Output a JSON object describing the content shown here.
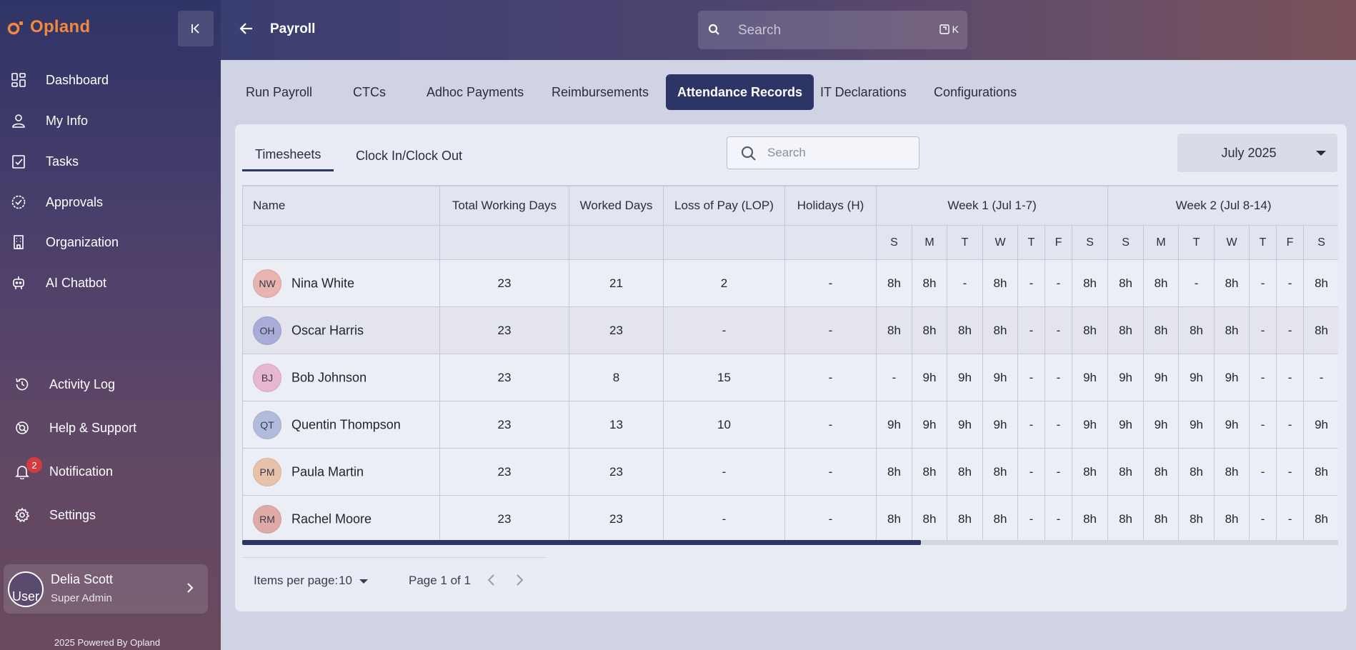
{
  "app": {
    "brand": "Opland",
    "powered_by": "2025 Powered By Opland"
  },
  "sidebar": {
    "items": [
      {
        "label": "Dashboard",
        "icon": "dashboard-icon"
      },
      {
        "label": "My Info",
        "icon": "user-icon"
      },
      {
        "label": "Tasks",
        "icon": "tasks-icon"
      },
      {
        "label": "Approvals",
        "icon": "approvals-icon"
      },
      {
        "label": "Organization",
        "icon": "building-icon"
      },
      {
        "label": "AI Chatbot",
        "icon": "robot-icon"
      }
    ],
    "bottom_items": [
      {
        "label": "Activity Log",
        "icon": "history-icon"
      },
      {
        "label": "Help & Support",
        "icon": "support-icon"
      },
      {
        "label": "Notification",
        "icon": "bell-icon",
        "badge": "2"
      },
      {
        "label": "Settings",
        "icon": "gear-icon"
      }
    ],
    "user": {
      "name": "Delia Scott",
      "role": "Super Admin",
      "avatar_alt": "User"
    }
  },
  "header": {
    "title": "Payroll",
    "search_placeholder": "Search",
    "shortcut_key": "K"
  },
  "tabs": [
    {
      "label": "Run Payroll",
      "active": false
    },
    {
      "label": "CTCs",
      "active": false
    },
    {
      "label": "Adhoc Payments",
      "active": false
    },
    {
      "label": "Reimbursements",
      "active": false
    },
    {
      "label": "Attendance Records",
      "active": true
    },
    {
      "label": "IT Declarations",
      "active": false
    },
    {
      "label": "Configurations",
      "active": false
    }
  ],
  "card": {
    "subtabs": [
      {
        "label": "Timesheets",
        "active": true
      },
      {
        "label": "Clock In/Clock Out",
        "active": false
      }
    ],
    "search_placeholder": "Search",
    "month": "July 2025"
  },
  "table": {
    "columns": [
      "Name",
      "Total Working Days",
      "Worked Days",
      "Loss of Pay (LOP)",
      "Holidays (H)"
    ],
    "weeks": [
      "Week 1 (Jul 1-7)",
      "Week 2 (Jul 8-14)"
    ],
    "day_headers": [
      "S",
      "M",
      "T",
      "W",
      "T",
      "F",
      "S"
    ],
    "rows": [
      {
        "initials": "NW",
        "avatar_color": "#e8b4b0",
        "name": "Nina White",
        "total": "23",
        "worked": "21",
        "lop": "2",
        "holidays": "-",
        "week1": [
          "8h",
          "8h",
          "-",
          "8h",
          "-",
          "-",
          "8h"
        ],
        "week2": [
          "8h",
          "8h",
          "-",
          "8h",
          "-",
          "-",
          "8h"
        ]
      },
      {
        "initials": "OH",
        "avatar_color": "#a9acd8",
        "name": "Oscar Harris",
        "total": "23",
        "worked": "23",
        "lop": "-",
        "holidays": "-",
        "week1": [
          "8h",
          "8h",
          "8h",
          "8h",
          "-",
          "-",
          "8h"
        ],
        "week2": [
          "8h",
          "8h",
          "8h",
          "8h",
          "-",
          "-",
          "8h"
        ]
      },
      {
        "initials": "BJ",
        "avatar_color": "#e7b6cf",
        "name": "Bob Johnson",
        "total": "23",
        "worked": "8",
        "lop": "15",
        "holidays": "-",
        "week1": [
          "-",
          "9h",
          "9h",
          "9h",
          "-",
          "-",
          "9h"
        ],
        "week2": [
          "9h",
          "9h",
          "9h",
          "9h",
          "-",
          "-",
          "-"
        ]
      },
      {
        "initials": "QT",
        "avatar_color": "#b1bcdd",
        "name": "Quentin Thompson",
        "total": "23",
        "worked": "13",
        "lop": "10",
        "holidays": "-",
        "week1": [
          "9h",
          "9h",
          "9h",
          "9h",
          "-",
          "-",
          "9h"
        ],
        "week2": [
          "9h",
          "9h",
          "9h",
          "9h",
          "-",
          "-",
          "9h"
        ]
      },
      {
        "initials": "PM",
        "avatar_color": "#e8c2a8",
        "name": "Paula Martin",
        "total": "23",
        "worked": "23",
        "lop": "-",
        "holidays": "-",
        "week1": [
          "8h",
          "8h",
          "8h",
          "8h",
          "-",
          "-",
          "8h"
        ],
        "week2": [
          "8h",
          "8h",
          "8h",
          "8h",
          "-",
          "-",
          "8h"
        ]
      },
      {
        "initials": "RM",
        "avatar_color": "#e0aaa8",
        "name": "Rachel Moore",
        "total": "23",
        "worked": "23",
        "lop": "-",
        "holidays": "-",
        "week1": [
          "8h",
          "8h",
          "8h",
          "8h",
          "-",
          "-",
          "8h"
        ],
        "week2": [
          "8h",
          "8h",
          "8h",
          "8h",
          "-",
          "-",
          "8h"
        ]
      }
    ]
  },
  "pagination": {
    "items_per_page_label": "Items per page:",
    "items_per_page": "10",
    "page_text": "Page 1 of 1"
  }
}
